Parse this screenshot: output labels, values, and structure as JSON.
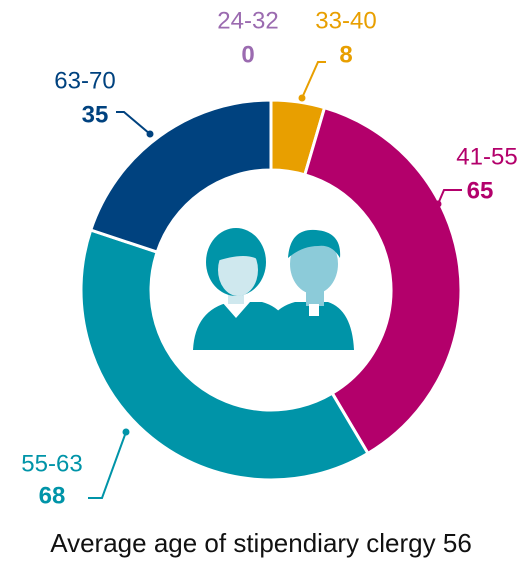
{
  "chart_data": {
    "type": "donut",
    "categories": [
      "24-32",
      "33-40",
      "41-55",
      "55-63",
      "63-70"
    ],
    "values": [
      0,
      8,
      65,
      68,
      35
    ],
    "colors": [
      "#9b6bb0",
      "#e89f00",
      "#b3006b",
      "#0094a8",
      "#00427f"
    ],
    "caption": "Average age of stipendiary clergy 56"
  }
}
